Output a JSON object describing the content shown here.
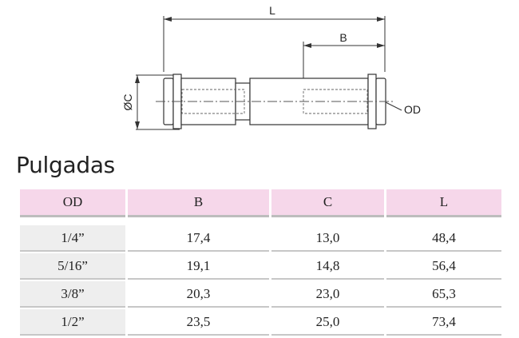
{
  "drawing": {
    "labels": {
      "length": "L",
      "depth": "B",
      "body_diameter": "ØC",
      "tube_od": "OD"
    }
  },
  "section_title": "Pulgadas",
  "table": {
    "headers": [
      "OD",
      "B",
      "C",
      "L"
    ],
    "rows": [
      {
        "od": "1/4”",
        "b": "17,4",
        "c": "13,0",
        "l": "48,4"
      },
      {
        "od": "5/16”",
        "b": "19,1",
        "c": "14,8",
        "l": "56,4"
      },
      {
        "od": "3/8”",
        "b": "20,3",
        "c": "23,0",
        "l": "65,3"
      },
      {
        "od": "1/2”",
        "b": "23,5",
        "c": "25,0",
        "l": "73,4"
      }
    ]
  },
  "colors": {
    "header_bg": "#f6d7ea",
    "od_column_bg": "#eeeeee",
    "rule": "#bdbdbd"
  }
}
